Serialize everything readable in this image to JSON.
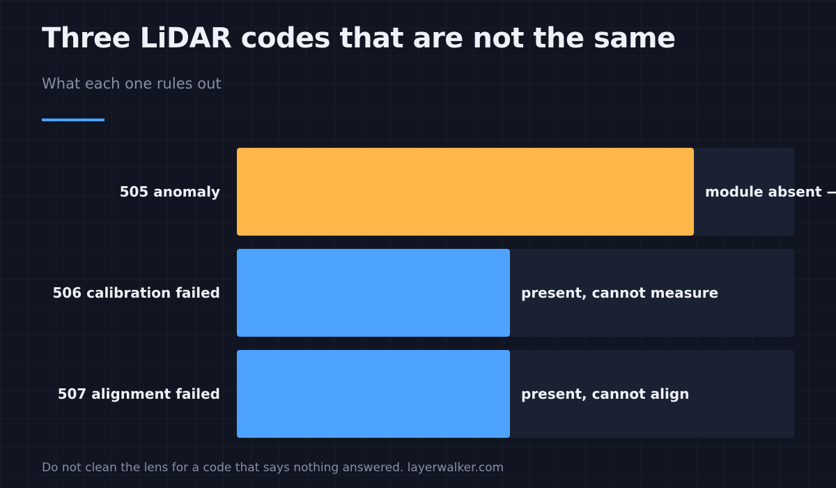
{
  "title": "Three LiDAR codes that are not the same",
  "subtitle": "What each one rules out",
  "footer": "Do not clean the lens for a code that says nothing answered. layerwalker.com",
  "colors": {
    "background": "#111522",
    "accent": "#4da3ff",
    "track": "#1a2133",
    "highlight": "#ffb74a",
    "bar": "#4da3ff",
    "text": "#eef1f8",
    "muted": "#8890a6"
  },
  "chart_data": {
    "type": "bar",
    "orientation": "horizontal",
    "categories": [
      "505 anomaly",
      "506 calibration failed",
      "507 alignment failed"
    ],
    "values": [
      82,
      49,
      49
    ],
    "value_labels": [
      "module absent —",
      "present, cannot measure",
      "present, cannot align"
    ],
    "highlight_index": 0,
    "xlim": [
      0,
      100
    ],
    "grid": true,
    "legend": "none"
  }
}
